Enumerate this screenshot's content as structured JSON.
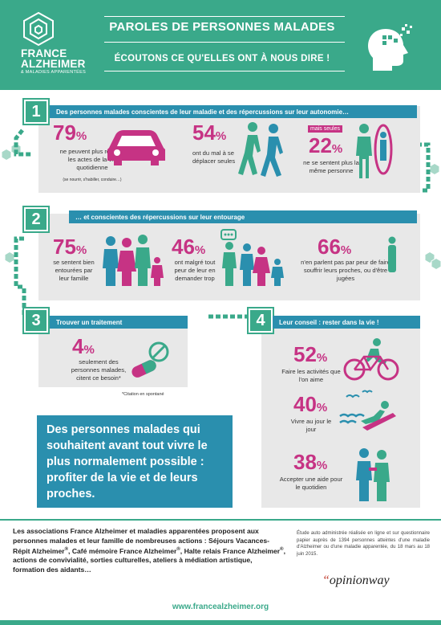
{
  "header": {
    "logo_line1": "FRANCE",
    "logo_line2": "ALZHEIMER",
    "logo_sub": "& MALADIES APPARENTÉES",
    "title": "PAROLES DE PERSONNES MALADES",
    "subtitle": "ÉCOUTONS CE QU'ELLES ONT À NOUS DIRE !"
  },
  "section1": {
    "number": "1",
    "heading": "Des personnes malades conscientes de leur maladie et des répercussions sur leur autonomie…",
    "stats": [
      {
        "value": "79",
        "unit": "%",
        "text": "ne peuvent plus réaliser les actes de la vie quotidienne",
        "note": "(se nourrir, s'habiller, conduire…)"
      },
      {
        "value": "54",
        "unit": "%",
        "text": "ont du mal à se déplacer seules"
      },
      {
        "value": "22",
        "unit": "%",
        "tag": "mais seules",
        "text": "ne se sentent plus la même personne"
      }
    ]
  },
  "section2": {
    "number": "2",
    "heading": "… et conscientes des répercussions sur leur entourage",
    "stats": [
      {
        "value": "75",
        "unit": "%",
        "text": "se sentent bien entourées par leur famille"
      },
      {
        "value": "46",
        "unit": "%",
        "text": "ont malgré tout peur de leur en demander trop"
      },
      {
        "value": "66",
        "unit": "%",
        "text": "n'en parlent pas par peur de faire souffrir leurs proches, ou d'être jugées"
      }
    ]
  },
  "section3": {
    "number": "3",
    "heading": "Trouver un traitement",
    "value": "4",
    "unit": "%",
    "text": "seulement des personnes malades, citent ce besoin*",
    "footnote": "*Citation en spontané"
  },
  "section4": {
    "number": "4",
    "heading": "Leur conseil : rester dans la vie !",
    "stats": [
      {
        "value": "52",
        "unit": "%",
        "text": "Faire les activités que l'on aime"
      },
      {
        "value": "40",
        "unit": "%",
        "text": "Vivre au jour le jour"
      },
      {
        "value": "38",
        "unit": "%",
        "text": "Accepter une aide pour le quotidien"
      }
    ]
  },
  "quote": "Des personnes malades qui souhaitent avant tout vivre le plus normalement possible : profiter de la vie et de leurs proches.",
  "footer": {
    "text_part1": "Les associations France Alzheimer et maladies apparentées proposent aux personnes malades et leur famille de nombreuses actions : Séjours Vacances-Répit Alzheimer",
    "text_part2": ", Café mémoire France Alzheimer",
    "text_part3": ", Halte relais France Alzheimer",
    "text_part4": ", actions de convivialité, sorties culturelles, ateliers à médiation artistique, formation des aidants…",
    "reg": "®",
    "study": "Étude auto administrée réalisée en ligne et sur questionnaire papier auprès de 1394 personnes atteintes d'une maladie d'Alzheimer ou d'une maladie apparentée, du 18 mars au 18 juin 2015.",
    "opinionway_quote": "“",
    "opinionway": "opinionway",
    "website": "www.francealzheimer.org"
  },
  "colors": {
    "green": "#3aa98a",
    "blue": "#2a8fae",
    "magenta": "#c63384",
    "panel": "#e8e8e8"
  }
}
